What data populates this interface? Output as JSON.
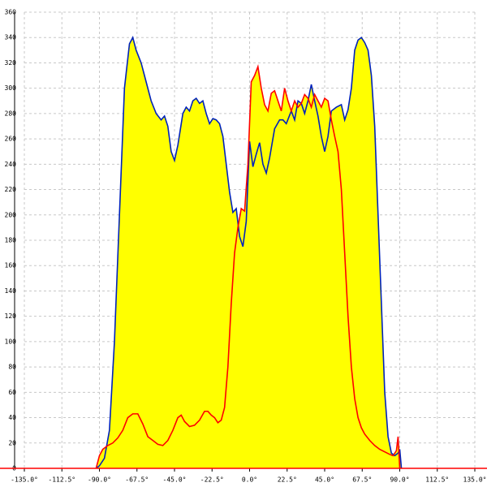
{
  "chart_data": {
    "type": "area",
    "xlim": [
      -135,
      135
    ],
    "ylim": [
      0,
      360
    ],
    "xticks": [
      {
        "value": -135,
        "label": "-135.0°"
      },
      {
        "value": -112.5,
        "label": "-112.5°"
      },
      {
        "value": -90,
        "label": "-90.0°"
      },
      {
        "value": -67.5,
        "label": "-67.5°"
      },
      {
        "value": -45,
        "label": "-45.0°"
      },
      {
        "value": -22.5,
        "label": "-22.5°"
      },
      {
        "value": 0,
        "label": "0.0°"
      },
      {
        "value": 22.5,
        "label": "22.5°"
      },
      {
        "value": 45,
        "label": "45.0°"
      },
      {
        "value": 67.5,
        "label": "67.5°"
      },
      {
        "value": 90,
        "label": "90.0°"
      },
      {
        "value": 112.5,
        "label": "112.5°"
      },
      {
        "value": 135,
        "label": "135.0°"
      }
    ],
    "yticks": [
      0,
      20,
      40,
      60,
      80,
      100,
      120,
      140,
      160,
      180,
      200,
      220,
      240,
      260,
      280,
      300,
      320,
      340,
      360
    ],
    "grid": true,
    "fill_color": "#ffff00",
    "axis_color": "#ff0000",
    "series": [
      {
        "color": "#0022bb",
        "x": [
          -92,
          -90,
          -87,
          -84,
          -81,
          -78,
          -75,
          -72,
          -70,
          -68,
          -65,
          -62,
          -59,
          -56,
          -53,
          -51,
          -49,
          -47,
          -45,
          -43,
          -40,
          -38,
          -36,
          -34,
          -32,
          -30,
          -28,
          -26,
          -24,
          -22,
          -20,
          -18,
          -16,
          -14,
          -12,
          -10,
          -8,
          -6,
          -4,
          -2,
          0,
          2,
          4,
          6,
          8,
          10,
          12,
          15,
          18,
          20,
          22,
          25,
          27,
          29,
          31,
          33,
          35,
          37,
          39,
          41,
          43,
          45,
          47,
          49,
          52,
          55,
          57,
          59,
          61,
          63,
          65,
          67,
          69,
          71,
          73,
          75,
          77,
          79,
          81,
          83,
          85,
          87,
          89,
          90,
          91
        ],
        "values": [
          0,
          2,
          8,
          30,
          100,
          200,
          300,
          335,
          340,
          330,
          320,
          305,
          290,
          280,
          275,
          278,
          270,
          250,
          243,
          255,
          280,
          285,
          282,
          290,
          292,
          288,
          290,
          280,
          272,
          276,
          275,
          272,
          262,
          240,
          218,
          202,
          205,
          183,
          175,
          195,
          258,
          238,
          248,
          257,
          240,
          233,
          245,
          268,
          275,
          275,
          272,
          282,
          275,
          290,
          288,
          280,
          290,
          303,
          290,
          278,
          262,
          250,
          262,
          282,
          285,
          287,
          275,
          283,
          300,
          330,
          338,
          340,
          336,
          330,
          310,
          270,
          200,
          130,
          60,
          25,
          12,
          10,
          12,
          15,
          0
        ]
      },
      {
        "color": "#ff0000",
        "x": [
          -92,
          -90,
          -88,
          -85,
          -82,
          -79,
          -76,
          -73,
          -70,
          -67,
          -64,
          -61,
          -58,
          -55,
          -52,
          -49,
          -46,
          -43,
          -41,
          -39,
          -36,
          -33,
          -30,
          -27,
          -25,
          -23,
          -21,
          -19,
          -17,
          -15,
          -13,
          -11,
          -9,
          -7,
          -5,
          -3,
          -1,
          1,
          3,
          5,
          7,
          9,
          11,
          13,
          15,
          17,
          19,
          21,
          23,
          25,
          27,
          29,
          31,
          33,
          35,
          37,
          39,
          41,
          43,
          45,
          47,
          49,
          51,
          53,
          55,
          57,
          59,
          61,
          63,
          65,
          67,
          69,
          72,
          75,
          78,
          81,
          84,
          86,
          88,
          89,
          90
        ],
        "values": [
          0,
          10,
          15,
          18,
          20,
          24,
          30,
          40,
          43,
          43,
          35,
          25,
          22,
          19,
          18,
          22,
          30,
          40,
          42,
          37,
          33,
          34,
          38,
          45,
          45,
          42,
          40,
          36,
          38,
          48,
          80,
          130,
          170,
          190,
          205,
          203,
          240,
          305,
          310,
          317,
          300,
          287,
          282,
          296,
          298,
          290,
          282,
          300,
          290,
          282,
          290,
          285,
          288,
          295,
          292,
          285,
          295,
          290,
          285,
          292,
          290,
          275,
          262,
          250,
          220,
          170,
          120,
          80,
          55,
          40,
          32,
          27,
          22,
          18,
          15,
          13,
          11,
          10,
          14,
          25,
          0
        ]
      }
    ]
  }
}
